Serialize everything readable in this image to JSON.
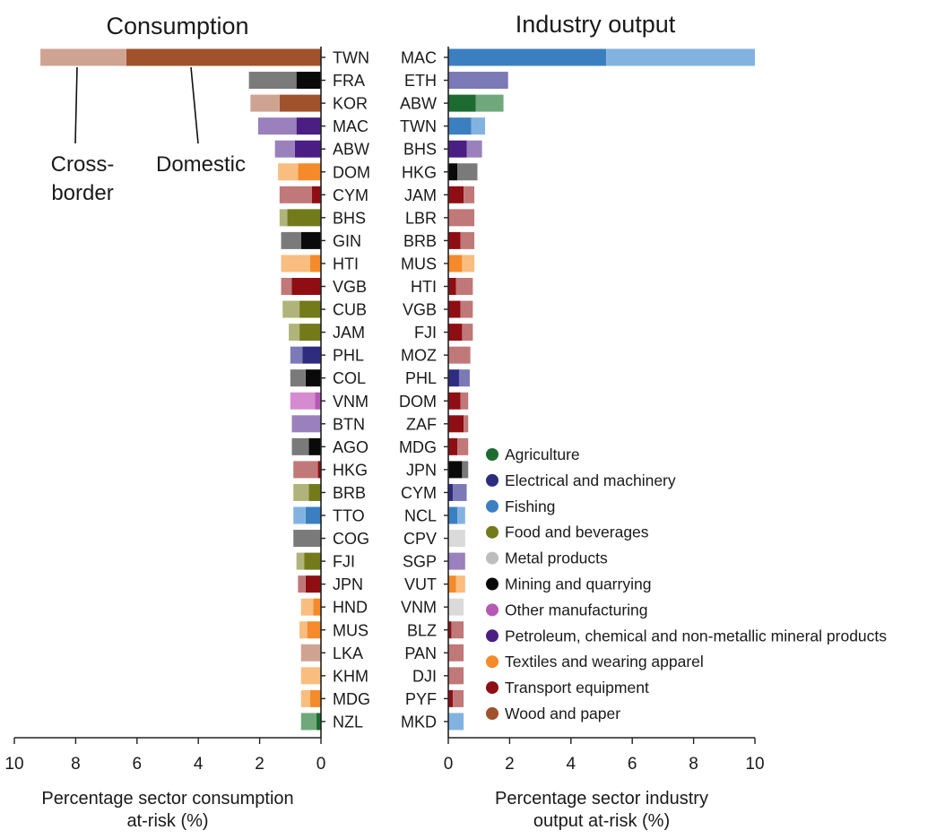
{
  "colors": {
    "Agriculture": [
      "#1e6b32",
      "#6fa87a"
    ],
    "Electrical and machinery": [
      "#2e2c7e",
      "#7b79b6"
    ],
    "Fishing": [
      "#3c7fc1",
      "#82b3e0"
    ],
    "Food and beverages": [
      "#727a1a",
      "#b0b47a"
    ],
    "Metal products": [
      "#bdbdbd",
      "#dadada"
    ],
    "Mining and quarrying": [
      "#0a0a0a",
      "#7a7a7a"
    ],
    "Other manufacturing": [
      "#b45ab4",
      "#d68bd0"
    ],
    "Petroleum, chemical and non-metallic mineral products": [
      "#4a1e82",
      "#9a80bc"
    ],
    "Textiles and wearing apparel": [
      "#f48a2a",
      "#f9bd80"
    ],
    "Transport equipment": [
      "#8e0e14",
      "#c07878"
    ],
    "Wood and paper": [
      "#a0522d",
      "#cfa392"
    ]
  },
  "legend": {
    "items": [
      "Agriculture",
      "Electrical and machinery",
      "Fishing",
      "Food and beverages",
      "Metal products",
      "Mining and quarrying",
      "Other manufacturing",
      "Petroleum, chemical and non-metallic mineral products",
      "Textiles and wearing apparel",
      "Transport equipment",
      "Wood and paper"
    ]
  },
  "annotations": {
    "cross_border_line1": "Cross-",
    "cross_border_line2": "border",
    "domestic": "Domestic"
  },
  "chart_data": [
    {
      "type": "bar",
      "orientation": "horizontal-stacked",
      "title": "Consumption",
      "xlabel_line1": "Percentage sector consumption",
      "xlabel_line2": "at-risk (%)",
      "xlim": [
        10,
        0
      ],
      "ticks": [
        "10",
        "8",
        "6",
        "4",
        "2",
        "0"
      ],
      "series_names": [
        "Domestic",
        "Cross-border"
      ],
      "categories": [
        "TWN",
        "FRA",
        "KOR",
        "MAC",
        "ABW",
        "DOM",
        "CYM",
        "BHS",
        "GIN",
        "HTI",
        "VGB",
        "CUB",
        "JAM",
        "PHL",
        "COL",
        "VNM",
        "BTN",
        "AGO",
        "HKG",
        "BRB",
        "TTO",
        "COG",
        "FJI",
        "JPN",
        "HND",
        "MUS",
        "LKA",
        "KHM",
        "MDG",
        "NZL"
      ],
      "sectors": [
        "Wood and paper",
        "Mining and quarrying",
        "Wood and paper",
        "Petroleum, chemical and non-metallic mineral products",
        "Petroleum, chemical and non-metallic mineral products",
        "Textiles and wearing apparel",
        "Transport equipment",
        "Food and beverages",
        "Mining and quarrying",
        "Textiles and wearing apparel",
        "Transport equipment",
        "Food and beverages",
        "Food and beverages",
        "Electrical and machinery",
        "Mining and quarrying",
        "Other manufacturing",
        "Petroleum, chemical and non-metallic mineral products",
        "Mining and quarrying",
        "Transport equipment",
        "Food and beverages",
        "Fishing",
        "Mining and quarrying",
        "Food and beverages",
        "Transport equipment",
        "Textiles and wearing apparel",
        "Textiles and wearing apparel",
        "Wood and paper",
        "Textiles and wearing apparel",
        "Textiles and wearing apparel",
        "Agriculture"
      ],
      "domestic": [
        6.35,
        0.8,
        1.35,
        0.8,
        0.85,
        0.75,
        0.3,
        1.1,
        0.65,
        0.35,
        0.95,
        0.7,
        0.7,
        0.6,
        0.5,
        0.2,
        0.0,
        0.4,
        0.1,
        0.4,
        0.5,
        0.0,
        0.55,
        0.5,
        0.25,
        0.45,
        0.0,
        0.0,
        0.35,
        0.15
      ],
      "cross_border": [
        2.8,
        1.55,
        0.95,
        1.25,
        0.65,
        0.65,
        1.05,
        0.25,
        0.65,
        0.95,
        0.35,
        0.55,
        0.35,
        0.4,
        0.5,
        0.8,
        0.95,
        0.55,
        0.8,
        0.5,
        0.4,
        0.9,
        0.25,
        0.25,
        0.4,
        0.25,
        0.65,
        0.65,
        0.3,
        0.5
      ]
    },
    {
      "type": "bar",
      "orientation": "horizontal-stacked",
      "title": "Industry output",
      "xlabel_line1": "Percentage sector industry",
      "xlabel_line2": "output at-risk (%)",
      "xlim": [
        0,
        10
      ],
      "ticks": [
        "0",
        "2",
        "4",
        "6",
        "8",
        "10"
      ],
      "series_names": [
        "Domestic",
        "Cross-border"
      ],
      "categories": [
        "MAC",
        "ETH",
        "ABW",
        "TWN",
        "BHS",
        "HKG",
        "JAM",
        "LBR",
        "BRB",
        "MUS",
        "HTI",
        "VGB",
        "FJI",
        "MOZ",
        "PHL",
        "DOM",
        "ZAF",
        "MDG",
        "JPN",
        "CYM",
        "NCL",
        "CPV",
        "SGP",
        "VUT",
        "VNM",
        "BLZ",
        "PAN",
        "DJI",
        "PYF",
        "MKD"
      ],
      "sectors": [
        "Fishing",
        "Electrical and machinery",
        "Agriculture",
        "Fishing",
        "Petroleum, chemical and non-metallic mineral products",
        "Mining and quarrying",
        "Transport equipment",
        "Transport equipment",
        "Transport equipment",
        "Textiles and wearing apparel",
        "Transport equipment",
        "Transport equipment",
        "Transport equipment",
        "Transport equipment",
        "Electrical and machinery",
        "Transport equipment",
        "Transport equipment",
        "Transport equipment",
        "Mining and quarrying",
        "Electrical and machinery",
        "Fishing",
        "Metal products",
        "Petroleum, chemical and non-metallic mineral products",
        "Textiles and wearing apparel",
        "Metal products",
        "Transport equipment",
        "Transport equipment",
        "Transport equipment",
        "Transport equipment",
        "Fishing"
      ],
      "domestic": [
        5.15,
        0.0,
        0.9,
        0.75,
        0.6,
        0.3,
        0.5,
        0.0,
        0.4,
        0.45,
        0.25,
        0.4,
        0.45,
        0.0,
        0.35,
        0.4,
        0.5,
        0.3,
        0.45,
        0.15,
        0.3,
        0.0,
        0.0,
        0.25,
        0.0,
        0.1,
        0.0,
        0.0,
        0.15,
        0.0
      ],
      "cross_border": [
        4.85,
        1.95,
        0.9,
        0.45,
        0.5,
        0.65,
        0.35,
        0.85,
        0.45,
        0.4,
        0.55,
        0.4,
        0.35,
        0.72,
        0.35,
        0.25,
        0.15,
        0.35,
        0.2,
        0.45,
        0.25,
        0.55,
        0.55,
        0.3,
        0.5,
        0.4,
        0.5,
        0.5,
        0.35,
        0.5
      ]
    }
  ]
}
